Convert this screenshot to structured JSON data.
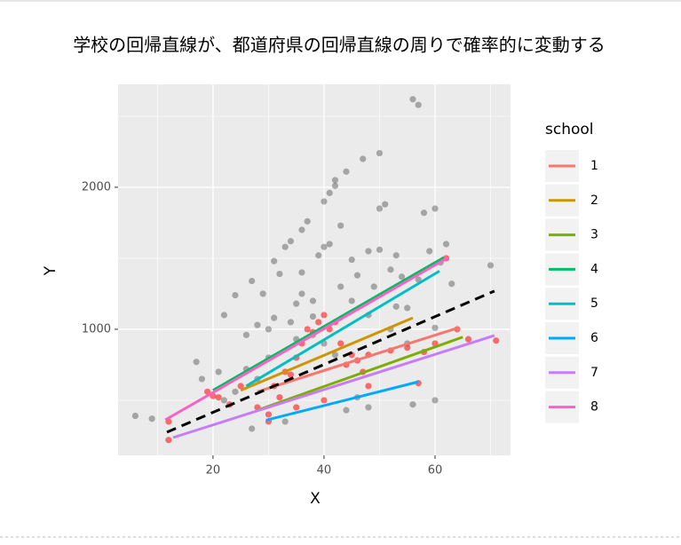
{
  "chart_data": {
    "type": "scatter-lines",
    "title": "学校の回帰直線が、都道府県の回帰直線の周りで確率的に変動する",
    "x_label": "X",
    "y_label": "Y",
    "xlim": [
      2.9,
      73.6
    ],
    "ylim": [
      112,
      2725
    ],
    "xticks": [
      20,
      40,
      60
    ],
    "yticks": [
      1000,
      2000
    ],
    "xminor": [
      10,
      30,
      50,
      70
    ],
    "yminor": [
      500,
      1500,
      2500
    ],
    "grid": true,
    "legend_title": "school",
    "legend": "right",
    "points": [
      {
        "color": "rgba(0,0,0,0.3)",
        "x": [
          6,
          9,
          17,
          21,
          22,
          24,
          26,
          27,
          28,
          29,
          30,
          31,
          32,
          33,
          34,
          35,
          36,
          36,
          37,
          38,
          39,
          40,
          41,
          41,
          42,
          42,
          43,
          44,
          45,
          46,
          47,
          48,
          49,
          50,
          50,
          51,
          52,
          53,
          54,
          55,
          56,
          57,
          58,
          59,
          60,
          60,
          61,
          62,
          63,
          70,
          60,
          56,
          48,
          44,
          46,
          33,
          27,
          22,
          18,
          40,
          42,
          38,
          34,
          30,
          26,
          45,
          52,
          55,
          48,
          36,
          43,
          40,
          38,
          31,
          35,
          28,
          24,
          50,
          53,
          57
        ],
        "y": [
          390,
          370,
          770,
          700,
          1100,
          1240,
          960,
          1340,
          1030,
          1250,
          1000,
          1480,
          1390,
          1580,
          1620,
          1180,
          1250,
          1700,
          1760,
          1090,
          1520,
          1900,
          1960,
          1600,
          2010,
          2050,
          1730,
          2110,
          1490,
          1380,
          2200,
          1550,
          1300,
          2240,
          1850,
          1880,
          1420,
          1160,
          1370,
          1150,
          2620,
          2580,
          1820,
          1550,
          1850,
          1010,
          1470,
          1600,
          1320,
          1450,
          500,
          470,
          450,
          430,
          520,
          350,
          300,
          500,
          650,
          900,
          820,
          960,
          1050,
          800,
          720,
          1200,
          1000,
          900,
          1100,
          1400,
          1300,
          1580,
          1200,
          1080,
          930,
          650,
          560,
          1560,
          1520,
          1350
        ]
      },
      {
        "color": "rgba(255,0,0,0.55)",
        "x": [
          12,
          12,
          19,
          20,
          21,
          23,
          25,
          28,
          30,
          31,
          32,
          33,
          34,
          35,
          36,
          37,
          38,
          39,
          40,
          41,
          42,
          43,
          44,
          45,
          46,
          47,
          48,
          52,
          55,
          58,
          60,
          62,
          64,
          66,
          71,
          57,
          30,
          35,
          40,
          48
        ],
        "y": [
          220,
          350,
          560,
          530,
          520,
          470,
          600,
          450,
          350,
          600,
          520,
          700,
          680,
          800,
          900,
          1000,
          980,
          1050,
          1100,
          1000,
          1050,
          900,
          750,
          820,
          780,
          700,
          820,
          850,
          870,
          840,
          900,
          1500,
          1000,
          930,
          920,
          620,
          400,
          450,
          500,
          600
        ]
      }
    ],
    "series": [
      {
        "name": "1",
        "color": "#F8766D",
        "x": [
          28,
          64.3
        ],
        "values": [
          560,
          1012
        ]
      },
      {
        "name": "2",
        "color": "#CD9600",
        "x": [
          25,
          56
        ],
        "values": [
          570,
          1080
        ]
      },
      {
        "name": "3",
        "color": "#7CAE00",
        "x": [
          28,
          65
        ],
        "values": [
          430,
          945
        ]
      },
      {
        "name": "4",
        "color": "#00BE67",
        "x": [
          20,
          61.6
        ],
        "values": [
          570,
          1506
        ]
      },
      {
        "name": "5",
        "color": "#00BFC4",
        "x": [
          26,
          60.8
        ],
        "values": [
          600,
          1410
        ]
      },
      {
        "name": "6",
        "color": "#00A9FF",
        "x": [
          29.6,
          57
        ],
        "values": [
          360,
          630
        ]
      },
      {
        "name": "7",
        "color": "#C77CFF",
        "x": [
          12.8,
          70.7
        ],
        "values": [
          237,
          956
        ]
      },
      {
        "name": "8",
        "color": "#FF61C3",
        "x": [
          11.4,
          62.4
        ],
        "values": [
          362,
          1506
        ]
      }
    ],
    "overall": {
      "color": "#000000",
      "x": [
        11.7,
        70.7
      ],
      "values": [
        275,
        1269
      ]
    }
  }
}
